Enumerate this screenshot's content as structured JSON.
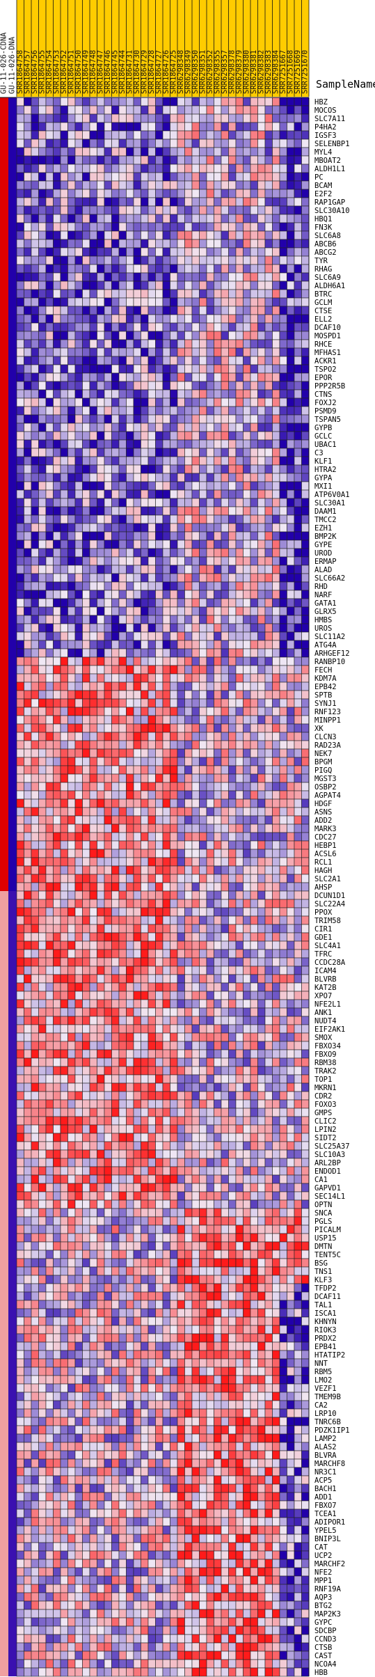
{
  "chart_data": {
    "type": "heatmap",
    "row_header": "SampleName",
    "class_columns": [
      "GU-11-026-CDNA",
      "GU-11-026-DNA"
    ],
    "columns": [
      "SRR1864758",
      "SRR1864757",
      "SRR1864756",
      "SRR1864755",
      "SRR1864754",
      "SRR1864753",
      "SRR1864752",
      "SRR1864751",
      "SRR1864750",
      "SRR1864749",
      "SRR1864748",
      "SRR1864747",
      "SRR1864746",
      "SRR1864745",
      "SRR1864744",
      "SRR1864731",
      "SRR1864730",
      "SRR1864729",
      "SRR1864728",
      "SRR1864727",
      "SRR1864726",
      "SRR1864725",
      "SRR6298348",
      "SRR6298349",
      "SRR6298350",
      "SRR6298351",
      "SRR6298352",
      "SRR6298355",
      "SRR6298357",
      "SRR6298378",
      "SRR6298379",
      "SRR6298380",
      "SRR6298381",
      "SRR6298382",
      "SRR6298383",
      "SRR6298384",
      "SRR7251667",
      "SRR7251668",
      "SRR7251669",
      "SRR7251670"
    ],
    "rows": [
      "HBZ",
      "MOCOS",
      "SLC7A11",
      "P4HA2",
      "IGSF3",
      "SELENBP1",
      "MYL4",
      "MBOAT2",
      "ALDH1L1",
      "PC",
      "BCAM",
      "E2F2",
      "RAP1GAP",
      "SLC30A10",
      "HBQ1",
      "FN3K",
      "SLC6A8",
      "ABCB6",
      "ABCG2",
      "TYR",
      "RHAG",
      "SLC6A9",
      "ALDH6A1",
      "BTRC",
      "GCLM",
      "CTSE",
      "ELL2",
      "DCAF10",
      "MOSPD1",
      "RHCE",
      "MFHAS1",
      "ACKR1",
      "TSPO2",
      "EPOR",
      "PPP2R5B",
      "CTNS",
      "FOXJ2",
      "PSMD9",
      "TSPAN5",
      "GYPB",
      "GCLC",
      "UBAC1",
      "C3",
      "KLF1",
      "HTRA2",
      "GYPA",
      "MXI1",
      "ATP6V0A1",
      "SLC30A1",
      "DAAM1",
      "TMCC2",
      "EZH1",
      "BMP2K",
      "GYPE",
      "UROD",
      "ERMAP",
      "ALAD",
      "SLC66A2",
      "RHD",
      "NARF",
      "GATA1",
      "GLRX5",
      "HMBS",
      "UROS",
      "SLC11A2",
      "ATG4A",
      "ARHGEF12",
      "RANBP10",
      "FECH",
      "KDM7A",
      "EPB42",
      "SPTB",
      "SYNJ1",
      "RNF123",
      "MINPP1",
      "XK",
      "CLCN3",
      "RAD23A",
      "NEK7",
      "BPGM",
      "PIGQ",
      "MGST3",
      "OSBP2",
      "AGPAT4",
      "HDGF",
      "ASNS",
      "ADD2",
      "MARK3",
      "CDC27",
      "HEBP1",
      "ACSL6",
      "RCL1",
      "HAGH",
      "SLC2A1",
      "AHSP",
      "DCUN1D1",
      "SLC22A4",
      "PPOX",
      "TRIM58",
      "CIR1",
      "GDE1",
      "SLC4A1",
      "TFRC",
      "CCDC28A",
      "ICAM4",
      "BLVRB",
      "KAT2B",
      "XPO7",
      "NFE2L1",
      "ANK1",
      "NUDT4",
      "EIF2AK1",
      "SMOX",
      "FBXO34",
      "FBXO9",
      "RBM38",
      "TRAK2",
      "TOP1",
      "MKRN1",
      "CDR2",
      "FOXO3",
      "GMPS",
      "CLIC2",
      "LPIN2",
      "SIDT2",
      "SLC25A37",
      "SLC10A3",
      "ARL2BP",
      "ENDOD1",
      "CA1",
      "GAPVD1",
      "SEC14L1",
      "OPTN",
      "SNCA",
      "PGLS",
      "PICALM",
      "USP15",
      "DMTN",
      "TENT5C",
      "BSG",
      "TNS1",
      "KLF3",
      "TFDP2",
      "DCAF11",
      "TAL1",
      "ISCA1",
      "KHNYN",
      "RIOK3",
      "PRDX2",
      "EPB41",
      "HTATIP2",
      "NNT",
      "RBM5",
      "LMO2",
      "VEZF1",
      "TMEM9B",
      "CA2",
      "LRP10",
      "TNRC6B",
      "PDZK1IP1",
      "LAMP2",
      "ALAS2",
      "BLVRA",
      "MARCHF8",
      "NR3C1",
      "ACP5",
      "BACH1",
      "ADD1",
      "FBXO7",
      "TCEA1",
      "ADIPOR1",
      "YPEL5",
      "BNIP3L",
      "CAT",
      "UCP2",
      "MARCHF2",
      "NFE2",
      "MPP1",
      "RNF19A",
      "AQP3",
      "BTG2",
      "MAP2K3",
      "GYPC",
      "SDCBP",
      "CCND3",
      "CTSB",
      "CAST",
      "NCOA4",
      "HBB"
    ],
    "color_scale": {
      "low": "#2200aa",
      "mid": "#f0e8f4",
      "high": "#ff1a1a"
    },
    "class_colors": {
      "GU-11-026-CDNA": "#dd0000",
      "GU-11-026-DNA": "#2200aa"
    },
    "header_color": "#ffcc00",
    "seed": 4242
  }
}
